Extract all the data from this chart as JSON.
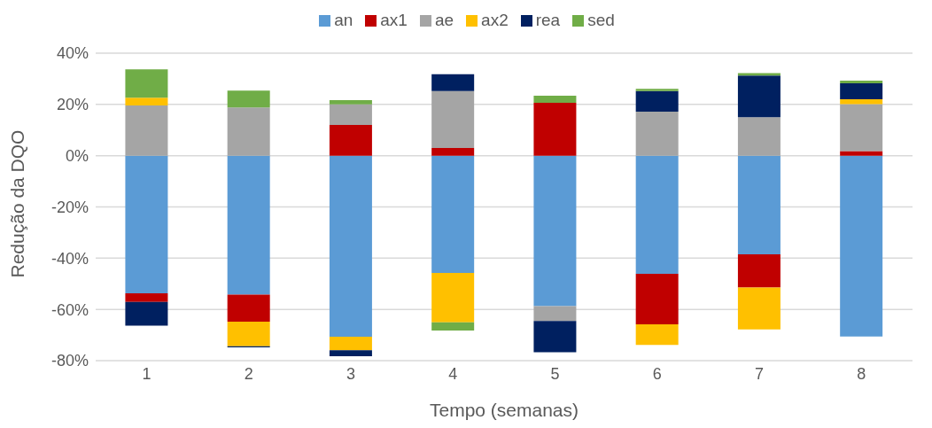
{
  "chart_data": {
    "type": "bar",
    "stacked": true,
    "xlabel": "Tempo (semanas)",
    "ylabel": "Redução da DQO",
    "categories": [
      "1",
      "2",
      "3",
      "4",
      "5",
      "6",
      "7",
      "8"
    ],
    "series": [
      {
        "name": "an",
        "color": "#5b9bd5",
        "values": [
          -53.7,
          -54.2,
          -70.7,
          -45.8,
          -58.7,
          -46.1,
          -38.5,
          -70.6
        ]
      },
      {
        "name": "ax1",
        "color": "#c00000",
        "values": [
          -3.4,
          -10.6,
          12.0,
          3.0,
          20.6,
          -19.7,
          -13.0,
          1.8
        ]
      },
      {
        "name": "ae",
        "color": "#a5a5a5",
        "values": [
          19.6,
          18.8,
          8.0,
          22.2,
          -5.8,
          17.2,
          15.0,
          18.3
        ]
      },
      {
        "name": "ax2",
        "color": "#ffc000",
        "values": [
          3.0,
          -9.6,
          -5.2,
          -19.2,
          null,
          -8.1,
          -16.3,
          1.9
        ]
      },
      {
        "name": "rea",
        "color": "#002060",
        "values": [
          -9.2,
          -0.4,
          -2.4,
          6.6,
          -12.2,
          8.0,
          16.3,
          6.2
        ]
      },
      {
        "name": "sed",
        "color": "#70ad47",
        "values": [
          11.1,
          6.6,
          1.7,
          -3.2,
          2.8,
          0.9,
          0.9,
          1.1
        ]
      }
    ],
    "ylim": [
      -80,
      40
    ],
    "yticks": [
      {
        "value": -80,
        "label": "-80%"
      },
      {
        "value": -60,
        "label": "-60%"
      },
      {
        "value": -40,
        "label": "-40%"
      },
      {
        "value": -20,
        "label": "-20%"
      },
      {
        "value": 0,
        "label": "0%"
      },
      {
        "value": 20,
        "label": "20%"
      },
      {
        "value": 40,
        "label": "40%"
      }
    ],
    "grid": "y",
    "legend": "top"
  }
}
